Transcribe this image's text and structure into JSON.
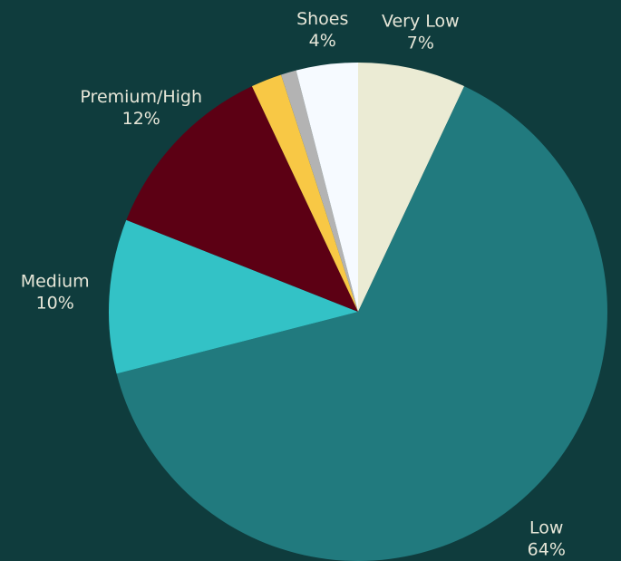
{
  "chart_data": {
    "type": "pie",
    "categories": [
      "Very Low",
      "Low",
      "Medium",
      "Premium/High",
      null,
      null,
      "Shoes"
    ],
    "values": [
      7,
      64,
      10,
      12,
      2,
      1,
      4
    ],
    "value_labels": [
      "7%",
      "64%",
      "10%",
      "12%",
      null,
      null,
      "4%"
    ],
    "colors": [
      "#ebebd4",
      "#217a7e",
      "#33c2c6",
      "#5c0014",
      "#f8c845",
      "#b3b3b3",
      "#f6faff"
    ]
  }
}
